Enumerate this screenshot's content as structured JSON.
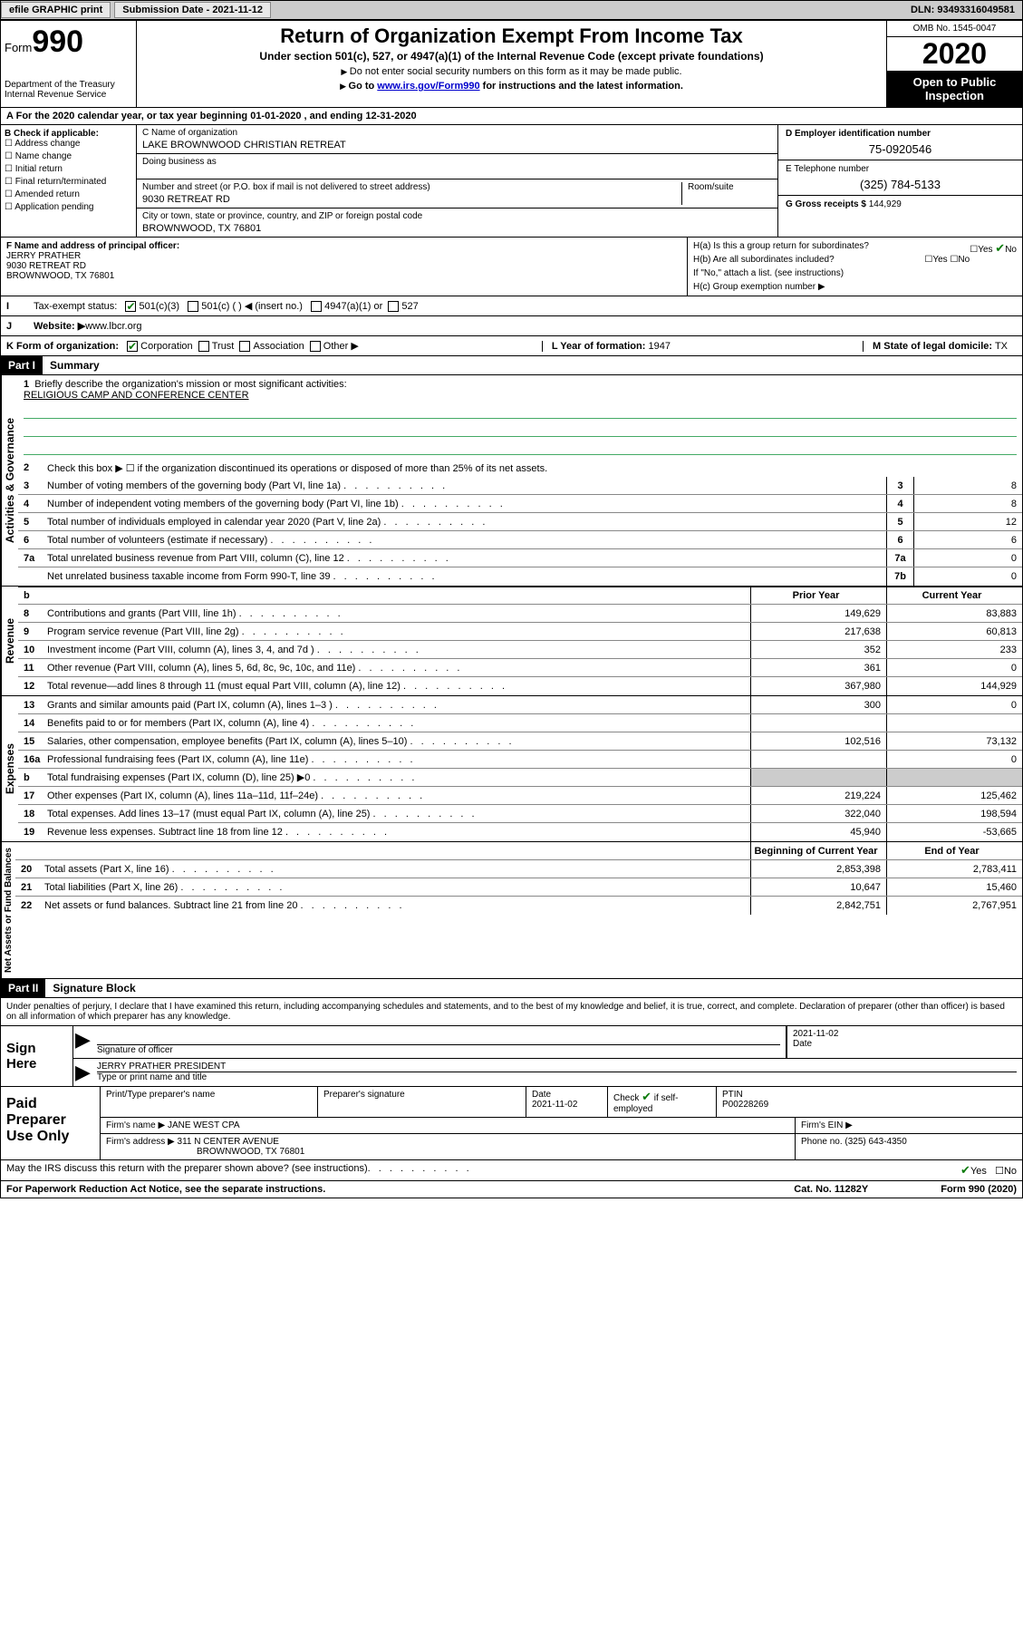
{
  "topbar": {
    "efile": "efile GRAPHIC print",
    "sub_label": "Submission Date - 2021-11-12",
    "dln": "DLN: 93493316049581"
  },
  "header": {
    "form_word": "Form",
    "form_num": "990",
    "dept": "Department of the Treasury\nInternal Revenue Service",
    "title": "Return of Organization Exempt From Income Tax",
    "subtitle": "Under section 501(c), 527, or 4947(a)(1) of the Internal Revenue Code (except private foundations)",
    "instr1": "Do not enter social security numbers on this form as it may be made public.",
    "instr2_pre": "Go to ",
    "instr2_link": "www.irs.gov/Form990",
    "instr2_post": " for instructions and the latest information.",
    "omb": "OMB No. 1545-0047",
    "year": "2020",
    "inspect": "Open to Public Inspection"
  },
  "yearline": "For the 2020 calendar year, or tax year beginning 01-01-2020   , and ending 12-31-2020",
  "boxB": {
    "label": "B Check if applicable:",
    "opts": [
      "Address change",
      "Name change",
      "Initial return",
      "Final return/terminated",
      "Amended return",
      "Application pending"
    ]
  },
  "boxC": {
    "name_label": "C Name of organization",
    "name": "LAKE BROWNWOOD CHRISTIAN RETREAT",
    "dba_label": "Doing business as",
    "street_label": "Number and street (or P.O. box if mail is not delivered to street address)",
    "room_label": "Room/suite",
    "street": "9030 RETREAT RD",
    "city_label": "City or town, state or province, country, and ZIP or foreign postal code",
    "city": "BROWNWOOD, TX  76801"
  },
  "boxD": {
    "label": "D Employer identification number",
    "val": "75-0920546"
  },
  "boxE": {
    "label": "E Telephone number",
    "val": "(325) 784-5133"
  },
  "boxG": {
    "label": "G Gross receipts $",
    "val": "144,929"
  },
  "boxF": {
    "label": "F  Name and address of principal officer:",
    "name": "JERRY PRATHER",
    "addr1": "9030 RETREAT RD",
    "addr2": "BROWNWOOD, TX  76801"
  },
  "boxH": {
    "a": "H(a)  Is this a group return for subordinates?",
    "b": "H(b)  Are all subordinates included?",
    "note": "If \"No,\" attach a list. (see instructions)",
    "c": "H(c)  Group exemption number ▶",
    "yes": "Yes",
    "no": "No"
  },
  "boxI": {
    "label": "Tax-exempt status:",
    "o1": "501(c)(3)",
    "o2": "501(c) (  ) ◀ (insert no.)",
    "o3": "4947(a)(1) or",
    "o4": "527"
  },
  "boxJ": {
    "label": "Website: ▶",
    "val": " www.lbcr.org"
  },
  "boxK": {
    "label": "K Form of organization:",
    "o1": "Corporation",
    "o2": "Trust",
    "o3": "Association",
    "o4": "Other ▶"
  },
  "boxL": {
    "label": "L Year of formation:",
    "val": "1947"
  },
  "boxM": {
    "label": "M State of legal domicile:",
    "val": "TX"
  },
  "part1": {
    "hdr": "Part I",
    "title": "Summary",
    "l1_label": "Briefly describe the organization's mission or most significant activities:",
    "l1_val": "RELIGIOUS CAMP AND CONFERENCE CENTER",
    "l2": "Check this box ▶ ☐  if the organization discontinued its operations or disposed of more than 25% of its net assets.",
    "rows_ag": [
      {
        "n": "3",
        "t": "Number of voting members of the governing body (Part VI, line 1a)",
        "box": "3",
        "v": "8"
      },
      {
        "n": "4",
        "t": "Number of independent voting members of the governing body (Part VI, line 1b)",
        "box": "4",
        "v": "8"
      },
      {
        "n": "5",
        "t": "Total number of individuals employed in calendar year 2020 (Part V, line 2a)",
        "box": "5",
        "v": "12"
      },
      {
        "n": "6",
        "t": "Total number of volunteers (estimate if necessary)",
        "box": "6",
        "v": "6"
      },
      {
        "n": "7a",
        "t": "Total unrelated business revenue from Part VIII, column (C), line 12",
        "box": "7a",
        "v": "0"
      },
      {
        "n": "",
        "t": "Net unrelated business taxable income from Form 990-T, line 39",
        "box": "7b",
        "v": "0"
      }
    ],
    "hdr_prior": "Prior Year",
    "hdr_current": "Current Year",
    "rows_rev": [
      {
        "n": "8",
        "t": "Contributions and grants (Part VIII, line 1h)",
        "p": "149,629",
        "c": "83,883"
      },
      {
        "n": "9",
        "t": "Program service revenue (Part VIII, line 2g)",
        "p": "217,638",
        "c": "60,813"
      },
      {
        "n": "10",
        "t": "Investment income (Part VIII, column (A), lines 3, 4, and 7d )",
        "p": "352",
        "c": "233"
      },
      {
        "n": "11",
        "t": "Other revenue (Part VIII, column (A), lines 5, 6d, 8c, 9c, 10c, and 11e)",
        "p": "361",
        "c": "0"
      },
      {
        "n": "12",
        "t": "Total revenue—add lines 8 through 11 (must equal Part VIII, column (A), line 12)",
        "p": "367,980",
        "c": "144,929"
      }
    ],
    "rows_exp": [
      {
        "n": "13",
        "t": "Grants and similar amounts paid (Part IX, column (A), lines 1–3 )",
        "p": "300",
        "c": "0"
      },
      {
        "n": "14",
        "t": "Benefits paid to or for members (Part IX, column (A), line 4)",
        "p": "",
        "c": ""
      },
      {
        "n": "15",
        "t": "Salaries, other compensation, employee benefits (Part IX, column (A), lines 5–10)",
        "p": "102,516",
        "c": "73,132"
      },
      {
        "n": "16a",
        "t": "Professional fundraising fees (Part IX, column (A), line 11e)",
        "p": "",
        "c": "0"
      },
      {
        "n": "b",
        "t": "Total fundraising expenses (Part IX, column (D), line 25) ▶0",
        "p": "SHADE",
        "c": "SHADE"
      },
      {
        "n": "17",
        "t": "Other expenses (Part IX, column (A), lines 11a–11d, 11f–24e)",
        "p": "219,224",
        "c": "125,462"
      },
      {
        "n": "18",
        "t": "Total expenses. Add lines 13–17 (must equal Part IX, column (A), line 25)",
        "p": "322,040",
        "c": "198,594"
      },
      {
        "n": "19",
        "t": "Revenue less expenses. Subtract line 18 from line 12",
        "p": "45,940",
        "c": "-53,665"
      }
    ],
    "hdr_beg": "Beginning of Current Year",
    "hdr_end": "End of Year",
    "rows_na": [
      {
        "n": "20",
        "t": "Total assets (Part X, line 16)",
        "p": "2,853,398",
        "c": "2,783,411"
      },
      {
        "n": "21",
        "t": "Total liabilities (Part X, line 26)",
        "p": "10,647",
        "c": "15,460"
      },
      {
        "n": "22",
        "t": "Net assets or fund balances. Subtract line 21 from line 20",
        "p": "2,842,751",
        "c": "2,767,951"
      }
    ]
  },
  "vtabs": {
    "ag": "Activities & Governance",
    "rev": "Revenue",
    "exp": "Expenses",
    "na": "Net Assets or Fund Balances"
  },
  "part2": {
    "hdr": "Part II",
    "title": "Signature Block",
    "perjury": "Under penalties of perjury, I declare that I have examined this return, including accompanying schedules and statements, and to the best of my knowledge and belief, it is true, correct, and complete. Declaration of preparer (other than officer) is based on all information of which preparer has any knowledge."
  },
  "sign": {
    "here": "Sign Here",
    "sig_label": "Signature of officer",
    "date_label": "Date",
    "date": "2021-11-02",
    "name": "JERRY PRATHER  PRESIDENT",
    "name_label": "Type or print name and title"
  },
  "prep": {
    "label": "Paid Preparer Use Only",
    "c1": "Print/Type preparer's name",
    "c2": "Preparer's signature",
    "c3": "Date",
    "c3v": "2021-11-02",
    "c4": "Check ☑ if self-employed",
    "c5": "PTIN",
    "c5v": "P00228269",
    "firm_label": "Firm's name    ▶",
    "firm": "JANE WEST CPA",
    "ein_label": "Firm's EIN ▶",
    "addr_label": "Firm's address ▶",
    "addr1": "311 N CENTER AVENUE",
    "addr2": "BROWNWOOD, TX  76801",
    "phone_label": "Phone no.",
    "phone": "(325) 643-4350"
  },
  "discuss": {
    "text": "May the IRS discuss this return with the preparer shown above? (see instructions)",
    "yes": "Yes",
    "no": "No"
  },
  "footer": {
    "l": "For Paperwork Reduction Act Notice, see the separate instructions.",
    "m": "Cat. No. 11282Y",
    "r": "Form 990 (2020)"
  }
}
